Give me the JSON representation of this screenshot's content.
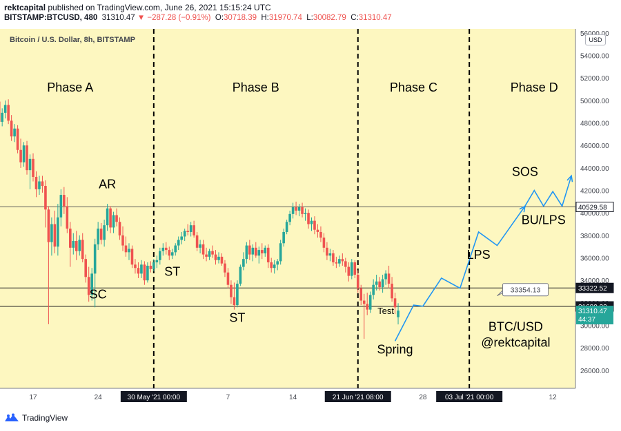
{
  "header": {
    "author": "rektcapital",
    "published": "published on TradingView.com, June 26, 2021 15:15:24 UTC",
    "symbol": "BITSTAMP:BTCUSD, 480",
    "last": "31310.47",
    "change": "−287.28 (−0.91%)",
    "open_label": "O:",
    "open": "30718.39",
    "high_label": "H:",
    "high": "31970.74",
    "low_label": "L:",
    "low": "30082.79",
    "close_label": "C:",
    "close": "31310.47"
  },
  "chart_title": "Bitcoin / U.S. Dollar, 8h, BITSTAMP",
  "currency_button": "USD",
  "footer": {
    "brand": "TradingView"
  },
  "colors": {
    "background": "#fdf7c0",
    "up": "#26a69a",
    "down": "#ef5350",
    "projection": "#2196f3"
  },
  "chart_data": {
    "type": "candlestick",
    "y_ticks": [
      26000,
      28000,
      30000,
      32000,
      34000,
      36000,
      38000,
      40000,
      42000,
      44000,
      46000,
      48000,
      50000,
      52000,
      54000,
      56000
    ],
    "ylim": [
      24600,
      56200
    ],
    "y_tick_labels": [
      "26000.00",
      "28000.00",
      "30000.00",
      "32000.00",
      "34000.00",
      "36000.00",
      "38000.00",
      "40000.00",
      "42000.00",
      "44000.00",
      "46000.00",
      "48000.00",
      "50000.00",
      "52000.00",
      "54000.00",
      "56000.00"
    ],
    "x_ticks": [
      {
        "date": "2021-05-17",
        "label": "17",
        "boxed": false
      },
      {
        "date": "2021-05-24",
        "label": "24",
        "boxed": false
      },
      {
        "date": "2021-05-30",
        "label": "30 May '21   00:00",
        "boxed": true
      },
      {
        "date": "2021-06-07",
        "label": "7",
        "boxed": false
      },
      {
        "date": "2021-06-14",
        "label": "14",
        "boxed": false
      },
      {
        "date": "2021-06-21",
        "label": "21 Jun '21   08:00",
        "boxed": true
      },
      {
        "date": "2021-06-28",
        "label": "28",
        "boxed": false
      },
      {
        "date": "2021-07-03",
        "label": "03 Jul '21   00:00",
        "boxed": true
      },
      {
        "date": "2021-07-12",
        "label": "12",
        "boxed": false
      }
    ],
    "horizontal_levels": [
      {
        "value": 40529.58,
        "label": "40529.58",
        "style": "light"
      },
      {
        "value": 33322.52,
        "label": "33322.52",
        "style": "dark"
      },
      {
        "value": 31680.32,
        "label": "31680.32",
        "style": "dark"
      }
    ],
    "last_price": {
      "value": 31310.47,
      "label": "31310.47",
      "countdown": "44:37"
    },
    "price_callout": {
      "value": 33354.13,
      "label": "33354.13"
    },
    "phase_dividers": [
      "2021-05-30",
      "2021-06-21",
      "2021-07-03"
    ],
    "phases": [
      {
        "label": "Phase A",
        "date": "2021-05-21"
      },
      {
        "label": "Phase B",
        "date": "2021-06-10"
      },
      {
        "label": "Phase C",
        "date": "2021-06-27"
      },
      {
        "label": "Phase D",
        "date": "2021-07-10"
      }
    ],
    "annotations": [
      {
        "label": "AR",
        "date": "2021-05-25",
        "value": 42200
      },
      {
        "label": "SC",
        "date": "2021-05-24",
        "value": 32400
      },
      {
        "label": "ST",
        "date": "2021-06-01",
        "value": 34400
      },
      {
        "label": "ST",
        "date": "2021-06-08",
        "value": 30300
      },
      {
        "label": "Test",
        "date": "2021-06-24",
        "value": 31000
      },
      {
        "label": "Spring",
        "date": "2021-06-25",
        "value": 27500
      },
      {
        "label": "LPS",
        "date": "2021-07-04",
        "value": 35900
      },
      {
        "label": "SOS",
        "date": "2021-07-09",
        "value": 43300
      },
      {
        "label": "BU/LPS",
        "date": "2021-07-11",
        "value": 39000
      },
      {
        "label": "BTC/USD",
        "date": "2021-07-08",
        "value": 29500
      },
      {
        "label": "@rektcapital",
        "date": "2021-07-08",
        "value": 28100
      }
    ],
    "projection_path": [
      [
        "2021-06-25",
        28600
      ],
      [
        "2021-06-27",
        31800
      ],
      [
        "2021-06-28",
        31700
      ],
      [
        "2021-06-30",
        34200
      ],
      [
        "2021-07-02",
        33300
      ],
      [
        "2021-07-04",
        38300
      ],
      [
        "2021-07-06",
        37100
      ],
      [
        "2021-07-09",
        40600
      ],
      [
        "2021-07-10",
        42000
      ],
      [
        "2021-07-11",
        40600
      ],
      [
        "2021-07-12",
        41900
      ],
      [
        "2021-07-13",
        40600
      ],
      [
        "2021-07-14",
        43300
      ]
    ],
    "candles": [
      [
        "2021-05-12",
        50000,
        51000,
        49200,
        50500
      ],
      [
        "2021-05-12",
        50500,
        51400,
        49800,
        51100
      ],
      [
        "2021-05-12",
        51100,
        51500,
        49400,
        49600
      ],
      [
        "2021-05-13",
        49600,
        50200,
        48400,
        48900
      ],
      [
        "2021-05-13",
        48900,
        50100,
        48500,
        49900
      ],
      [
        "2021-05-13",
        49900,
        50400,
        47800,
        48100
      ],
      [
        "2021-05-14",
        48100,
        49300,
        47700,
        48900
      ],
      [
        "2021-05-14",
        48900,
        50000,
        48400,
        49600
      ],
      [
        "2021-05-14",
        49600,
        50100,
        47900,
        48200
      ],
      [
        "2021-05-15",
        48200,
        48700,
        46400,
        46800
      ],
      [
        "2021-05-15",
        46800,
        47900,
        46300,
        47500
      ],
      [
        "2021-05-15",
        47500,
        47800,
        45300,
        45600
      ],
      [
        "2021-05-16",
        45600,
        46600,
        44000,
        44500
      ],
      [
        "2021-05-16",
        44500,
        46300,
        44100,
        46000
      ],
      [
        "2021-05-16",
        46000,
        46400,
        43400,
        43800
      ],
      [
        "2021-05-17",
        43800,
        45200,
        42100,
        44800
      ],
      [
        "2021-05-17",
        44800,
        45300,
        42800,
        43200
      ],
      [
        "2021-05-17",
        43200,
        43700,
        41400,
        42100
      ],
      [
        "2021-05-18",
        42100,
        43300,
        41600,
        42800
      ],
      [
        "2021-05-18",
        42800,
        43300,
        41800,
        42400
      ],
      [
        "2021-05-18",
        42400,
        42900,
        38700,
        40300
      ],
      [
        "2021-05-19",
        40300,
        40600,
        30100,
        37400
      ],
      [
        "2021-05-19",
        37400,
        39600,
        36200,
        39000
      ],
      [
        "2021-05-19",
        39000,
        40200,
        36400,
        37000
      ],
      [
        "2021-05-20",
        37000,
        40800,
        36200,
        39600
      ],
      [
        "2021-05-20",
        39600,
        42100,
        38800,
        41600
      ],
      [
        "2021-05-20",
        41600,
        42300,
        39900,
        40600
      ],
      [
        "2021-05-21",
        40600,
        41400,
        38200,
        38600
      ],
      [
        "2021-05-21",
        38600,
        39200,
        35200,
        36900
      ],
      [
        "2021-05-21",
        36900,
        38200,
        36300,
        37500
      ],
      [
        "2021-05-22",
        37500,
        38400,
        35800,
        36600
      ],
      [
        "2021-05-22",
        36600,
        38000,
        36200,
        37600
      ],
      [
        "2021-05-22",
        37600,
        38200,
        35600,
        35900
      ],
      [
        "2021-05-23",
        35900,
        36300,
        33800,
        34300
      ],
      [
        "2021-05-23",
        34300,
        35200,
        32100,
        32700
      ],
      [
        "2021-05-23",
        32700,
        35100,
        32200,
        34600
      ],
      [
        "2021-05-24",
        34600,
        37700,
        31600,
        37200
      ],
      [
        "2021-05-24",
        37200,
        39200,
        36700,
        38600
      ],
      [
        "2021-05-24",
        38600,
        39100,
        37200,
        37600
      ],
      [
        "2021-05-25",
        37600,
        39400,
        37000,
        38900
      ],
      [
        "2021-05-25",
        38900,
        40800,
        38400,
        40400
      ],
      [
        "2021-05-25",
        40400,
        40600,
        38200,
        38700
      ],
      [
        "2021-05-26",
        38700,
        40100,
        38200,
        39800
      ],
      [
        "2021-05-26",
        39800,
        40400,
        38800,
        39200
      ],
      [
        "2021-05-26",
        39200,
        39600,
        37600,
        38000
      ],
      [
        "2021-05-27",
        38000,
        38800,
        36600,
        37100
      ],
      [
        "2021-05-27",
        37100,
        37900,
        36100,
        36500
      ],
      [
        "2021-05-27",
        36500,
        37300,
        35800,
        36800
      ],
      [
        "2021-05-28",
        36800,
        37100,
        35100,
        35400
      ],
      [
        "2021-05-28",
        35400,
        35900,
        34600,
        35100
      ],
      [
        "2021-05-28",
        35100,
        35600,
        34200,
        34600
      ],
      [
        "2021-05-29",
        34600,
        35800,
        34200,
        35400
      ],
      [
        "2021-05-29",
        35400,
        35700,
        33600,
        34000
      ],
      [
        "2021-05-29",
        34000,
        35600,
        33800,
        35300
      ],
      [
        "2021-05-30",
        35300,
        35700,
        34700,
        35000
      ],
      [
        "2021-05-30",
        35000,
        35900,
        34800,
        35600
      ],
      [
        "2021-05-30",
        35600,
        36200,
        35100,
        35800
      ],
      [
        "2021-05-31",
        35800,
        36900,
        35400,
        36600
      ],
      [
        "2021-05-31",
        36600,
        37300,
        36200,
        36900
      ],
      [
        "2021-05-31",
        36900,
        37400,
        36300,
        36700
      ],
      [
        "2021-06-01",
        36700,
        37000,
        35800,
        36200
      ],
      [
        "2021-06-01",
        36200,
        36800,
        35900,
        36500
      ],
      [
        "2021-06-01",
        36500,
        37300,
        36200,
        37100
      ],
      [
        "2021-06-02",
        37100,
        37900,
        36700,
        37600
      ],
      [
        "2021-06-02",
        37600,
        38300,
        37200,
        37900
      ],
      [
        "2021-06-02",
        37900,
        38600,
        37500,
        38400
      ],
      [
        "2021-06-03",
        38400,
        39000,
        38000,
        38300
      ],
      [
        "2021-06-03",
        38300,
        39200,
        37900,
        38900
      ],
      [
        "2021-06-03",
        38900,
        39300,
        37800,
        38000
      ],
      [
        "2021-06-04",
        38000,
        38300,
        36600,
        36900
      ],
      [
        "2021-06-04",
        36900,
        37600,
        36400,
        37200
      ],
      [
        "2021-06-04",
        37200,
        37600,
        35900,
        36300
      ],
      [
        "2021-06-05",
        36300,
        36900,
        35700,
        36100
      ],
      [
        "2021-06-05",
        36100,
        36800,
        35800,
        36600
      ],
      [
        "2021-06-05",
        36600,
        37100,
        36000,
        36300
      ],
      [
        "2021-06-06",
        36300,
        36700,
        35400,
        35800
      ],
      [
        "2021-06-06",
        35800,
        36500,
        35500,
        36100
      ],
      [
        "2021-06-06",
        36100,
        36400,
        35300,
        35500
      ],
      [
        "2021-06-07",
        35500,
        35800,
        34300,
        34700
      ],
      [
        "2021-06-07",
        34700,
        35100,
        33300,
        33600
      ],
      [
        "2021-06-07",
        33600,
        34000,
        31900,
        32500
      ],
      [
        "2021-06-08",
        32500,
        33800,
        31400,
        31800
      ],
      [
        "2021-06-08",
        31800,
        34000,
        31600,
        33700
      ],
      [
        "2021-06-08",
        33700,
        35400,
        33500,
        35200
      ],
      [
        "2021-06-09",
        35200,
        36500,
        34900,
        35900
      ],
      [
        "2021-06-09",
        35900,
        37400,
        35500,
        37100
      ],
      [
        "2021-06-09",
        37100,
        37600,
        35800,
        36300
      ],
      [
        "2021-06-10",
        36300,
        37200,
        35700,
        36900
      ],
      [
        "2021-06-10",
        36900,
        37400,
        36000,
        36200
      ],
      [
        "2021-06-10",
        36200,
        37000,
        35500,
        36700
      ],
      [
        "2021-06-11",
        36700,
        37300,
        35900,
        36400
      ],
      [
        "2021-06-11",
        36400,
        37100,
        36100,
        36900
      ],
      [
        "2021-06-11",
        36900,
        37200,
        35100,
        35600
      ],
      [
        "2021-06-12",
        35600,
        36000,
        34700,
        35100
      ],
      [
        "2021-06-12",
        35100,
        35800,
        34600,
        35400
      ],
      [
        "2021-06-12",
        35400,
        35900,
        34900,
        35700
      ],
      [
        "2021-06-13",
        35700,
        37600,
        35400,
        37300
      ],
      [
        "2021-06-13",
        37300,
        38600,
        37000,
        38300
      ],
      [
        "2021-06-13",
        38300,
        39400,
        38100,
        39200
      ],
      [
        "2021-06-14",
        39200,
        40200,
        38900,
        39900
      ],
      [
        "2021-06-14",
        39900,
        40900,
        39500,
        40500
      ],
      [
        "2021-06-14",
        40500,
        41000,
        39800,
        40200
      ],
      [
        "2021-06-15",
        40200,
        40800,
        39700,
        40500
      ],
      [
        "2021-06-15",
        40500,
        40900,
        39600,
        39900
      ],
      [
        "2021-06-15",
        39900,
        40400,
        39300,
        40000
      ],
      [
        "2021-06-16",
        40000,
        40300,
        38600,
        39000
      ],
      [
        "2021-06-16",
        39000,
        39600,
        38400,
        39300
      ],
      [
        "2021-06-16",
        39300,
        39700,
        38100,
        38500
      ],
      [
        "2021-06-17",
        38500,
        39000,
        37800,
        38300
      ],
      [
        "2021-06-17",
        38300,
        38800,
        37400,
        37800
      ],
      [
        "2021-06-17",
        37800,
        38200,
        36500,
        36900
      ],
      [
        "2021-06-18",
        36900,
        37400,
        35800,
        36200
      ],
      [
        "2021-06-18",
        36200,
        36800,
        35700,
        36400
      ],
      [
        "2021-06-18",
        36400,
        36700,
        35300,
        35600
      ],
      [
        "2021-06-19",
        35600,
        36100,
        35100,
        35500
      ],
      [
        "2021-06-19",
        35500,
        36200,
        35200,
        35900
      ],
      [
        "2021-06-19",
        35900,
        36400,
        35300,
        35700
      ],
      [
        "2021-06-20",
        35700,
        36000,
        34700,
        35200
      ],
      [
        "2021-06-20",
        35200,
        35600,
        33900,
        34400
      ],
      [
        "2021-06-20",
        34400,
        35900,
        34100,
        35600
      ],
      [
        "2021-06-21",
        35600,
        35800,
        34200,
        34500
      ],
      [
        "2021-06-21",
        34500,
        34900,
        32900,
        33300
      ],
      [
        "2021-06-21",
        33300,
        33600,
        31800,
        32200
      ],
      [
        "2021-06-22",
        32200,
        32800,
        28800,
        31900
      ],
      [
        "2021-06-22",
        31900,
        32900,
        30900,
        31400
      ],
      [
        "2021-06-22",
        31400,
        33000,
        31100,
        32700
      ],
      [
        "2021-06-23",
        32700,
        34100,
        32300,
        33600
      ],
      [
        "2021-06-23",
        33600,
        34500,
        33100,
        33900
      ],
      [
        "2021-06-23",
        33900,
        34300,
        33100,
        33400
      ],
      [
        "2021-06-24",
        33400,
        34500,
        32900,
        34100
      ],
      [
        "2021-06-24",
        34100,
        34900,
        33600,
        34600
      ],
      [
        "2021-06-24",
        34600,
        35300,
        33300,
        33700
      ],
      [
        "2021-06-25",
        33700,
        34300,
        32100,
        32400
      ],
      [
        "2021-06-25",
        32400,
        32900,
        31000,
        31600
      ],
      [
        "2021-06-25",
        30720,
        31970,
        30080,
        31310
      ]
    ]
  }
}
